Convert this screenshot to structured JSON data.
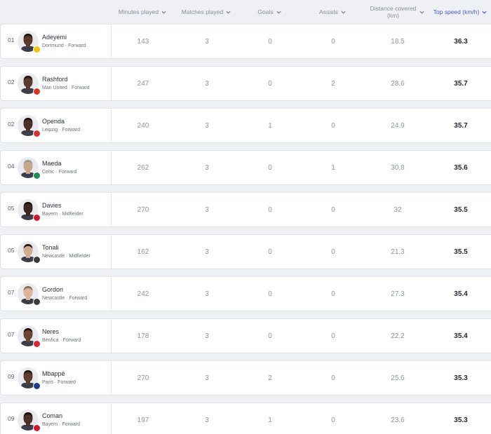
{
  "columns": [
    {
      "key": "minutes",
      "label": "Minutes played",
      "active": false
    },
    {
      "key": "matches",
      "label": "Matches played",
      "active": false
    },
    {
      "key": "goals",
      "label": "Goals",
      "active": false
    },
    {
      "key": "assists",
      "label": "Assists",
      "active": false
    },
    {
      "key": "distance",
      "label": "Distance covered (km)",
      "active": false
    },
    {
      "key": "speed",
      "label": "Top speed (km/h)",
      "active": true
    }
  ],
  "players": [
    {
      "rank": "01",
      "name": "Adeyemi",
      "meta": "Dortmund · Forward",
      "minutes": "143",
      "matches": "3",
      "goals": "0",
      "assists": "0",
      "distance": "18.5",
      "speed": "36.3",
      "skin": "#5a3b2a",
      "hair": "#1e1410",
      "badge": "#f2c400"
    },
    {
      "rank": "02",
      "name": "Rashford",
      "meta": "Man United · Forward",
      "minutes": "247",
      "matches": "3",
      "goals": "0",
      "assists": "2",
      "distance": "28.6",
      "speed": "35.7",
      "skin": "#5a3a2c",
      "hair": "#201611",
      "badge": "#d8331f"
    },
    {
      "rank": "02",
      "name": "Openda",
      "meta": "Leipzig · Forward",
      "minutes": "240",
      "matches": "3",
      "goals": "1",
      "assists": "0",
      "distance": "24.9",
      "speed": "35.7",
      "skin": "#4d3226",
      "hair": "#1b1310",
      "badge": "#d8302e"
    },
    {
      "rank": "04",
      "name": "Maeda",
      "meta": "Celtic · Forward",
      "minutes": "262",
      "matches": "3",
      "goals": "0",
      "assists": "1",
      "distance": "30.8",
      "speed": "35.6",
      "skin": "#c9a588",
      "hair": "#9b9b9b",
      "badge": "#1c8f4c"
    },
    {
      "rank": "05",
      "name": "Davies",
      "meta": "Bayern · Midfielder",
      "minutes": "270",
      "matches": "3",
      "goals": "0",
      "assists": "0",
      "distance": "32",
      "speed": "35.5",
      "skin": "#3b2720",
      "hair": "#15100d",
      "badge": "#d2162e"
    },
    {
      "rank": "05",
      "name": "Tonali",
      "meta": "Newcastle · Midfielder",
      "minutes": "162",
      "matches": "3",
      "goals": "0",
      "assists": "0",
      "distance": "21.3",
      "speed": "35.5",
      "skin": "#d2ab8e",
      "hair": "#2a1f1a",
      "badge": "#3b3b3b"
    },
    {
      "rank": "07",
      "name": "Gordon",
      "meta": "Newcastle · Forward",
      "minutes": "242",
      "matches": "3",
      "goals": "0",
      "assists": "0",
      "distance": "27.3",
      "speed": "35.4",
      "skin": "#dcb49a",
      "hair": "#8a6e55",
      "badge": "#3b3b3b"
    },
    {
      "rank": "07",
      "name": "Neres",
      "meta": "Benfica · Forward",
      "minutes": "178",
      "matches": "3",
      "goals": "0",
      "assists": "0",
      "distance": "22.2",
      "speed": "35.4",
      "skin": "#6b4634",
      "hair": "#1d1411",
      "badge": "#e0262f"
    },
    {
      "rank": "09",
      "name": "Mbappé",
      "meta": "Paris · Forward",
      "minutes": "270",
      "matches": "3",
      "goals": "2",
      "assists": "0",
      "distance": "25.6",
      "speed": "35.3",
      "skin": "#5c3c2c",
      "hair": "#1e1511",
      "badge": "#1d3b8c"
    },
    {
      "rank": "09",
      "name": "Coman",
      "meta": "Bayern · Forward",
      "minutes": "197",
      "matches": "3",
      "goals": "1",
      "assists": "0",
      "distance": "23.6",
      "speed": "35.3",
      "skin": "#4a3026",
      "hair": "#17110e",
      "badge": "#d2162e"
    }
  ]
}
